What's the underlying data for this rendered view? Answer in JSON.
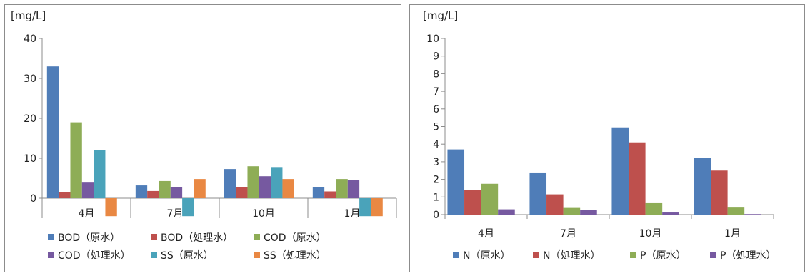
{
  "chart_data": [
    {
      "type": "bar",
      "ylabel": "[mg/L]",
      "ylim": [
        0,
        40
      ],
      "yticks": [
        0,
        10,
        20,
        30,
        40
      ],
      "grid": false,
      "legend": "bottom",
      "categories": [
        "4月",
        "7月",
        "10月",
        "1月"
      ],
      "series": [
        {
          "name": "BOD（原水）",
          "color": "#4f7db8",
          "values": [
            33,
            3.2,
            7.3,
            2.7
          ]
        },
        {
          "name": "BOD（処理水）",
          "color": "#be504d",
          "values": [
            1.6,
            1.8,
            2.8,
            1.7
          ]
        },
        {
          "name": "COD（原水）",
          "color": "#8ead56",
          "values": [
            19,
            4.3,
            8,
            4.8
          ]
        },
        {
          "name": "COD（処理水）",
          "color": "#7659a0",
          "values": [
            3.9,
            2.7,
            5.5,
            4.6
          ]
        },
        {
          "name": "SS（原水）",
          "color": "#4aa3ba",
          "values": [
            12,
            -4.5,
            7.8,
            -4.5
          ]
        },
        {
          "name": "SS（処理水）",
          "color": "#e98843",
          "values": [
            -4.5,
            4.8,
            4.8,
            -4.5
          ]
        }
      ]
    },
    {
      "type": "bar",
      "ylabel": "[mg/L]",
      "ylim": [
        0,
        10
      ],
      "yticks": [
        0,
        1,
        2,
        3,
        4,
        5,
        6,
        7,
        8,
        9,
        10
      ],
      "grid": false,
      "legend": "bottom",
      "categories": [
        "4月",
        "7月",
        "10月",
        "1月"
      ],
      "series": [
        {
          "name": "N（原水）",
          "color": "#4f7db8",
          "values": [
            3.7,
            2.35,
            4.95,
            3.2
          ]
        },
        {
          "name": "N（処理水）",
          "color": "#be504d",
          "values": [
            1.4,
            1.15,
            4.1,
            2.5
          ]
        },
        {
          "name": "P（原水）",
          "color": "#8ead56",
          "values": [
            1.75,
            0.38,
            0.65,
            0.4
          ]
        },
        {
          "name": "P（処理水）",
          "color": "#7659a0",
          "values": [
            0.3,
            0.25,
            0.12,
            0.03
          ]
        }
      ]
    }
  ]
}
